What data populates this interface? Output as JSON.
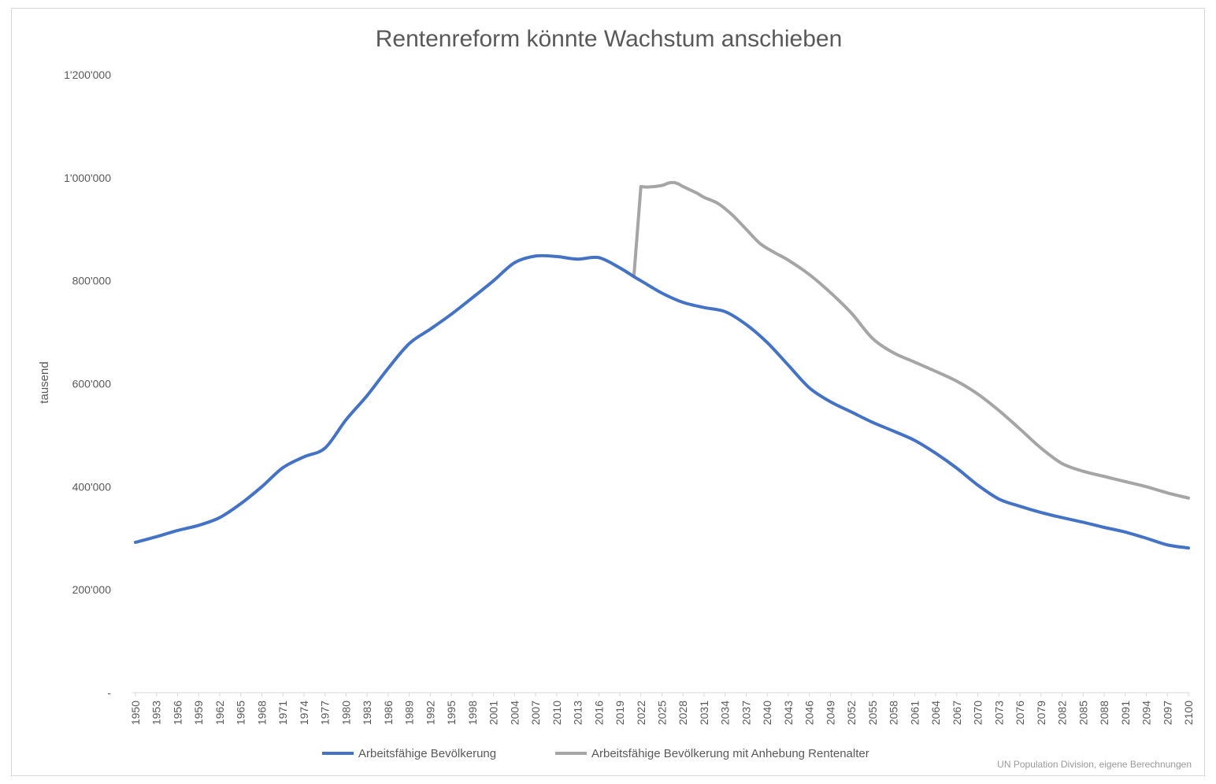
{
  "chart_data": {
    "type": "line",
    "title": "Rentenreform könnte Wachstum anschieben",
    "ylabel": "tausend",
    "xlabel": "",
    "ylim": [
      0,
      1200000
    ],
    "yticks": [
      0,
      200000,
      400000,
      600000,
      800000,
      1000000,
      1200000
    ],
    "ytick_labels": [
      "-",
      "200'000",
      "400'000",
      "600'000",
      "800'000",
      "1'000'000",
      "1'200'000"
    ],
    "xlim": [
      1950,
      2100
    ],
    "xticks": [
      1950,
      1953,
      1956,
      1959,
      1962,
      1965,
      1968,
      1971,
      1974,
      1977,
      1980,
      1983,
      1986,
      1989,
      1992,
      1995,
      1998,
      2001,
      2004,
      2007,
      2010,
      2013,
      2016,
      2019,
      2022,
      2025,
      2028,
      2031,
      2034,
      2037,
      2040,
      2043,
      2046,
      2049,
      2052,
      2055,
      2058,
      2061,
      2064,
      2067,
      2070,
      2073,
      2076,
      2079,
      2082,
      2085,
      2088,
      2091,
      2094,
      2097,
      2100
    ],
    "grid": false,
    "legend_position": "bottom",
    "series": [
      {
        "name": "Arbeitsfähige Bevölkerung",
        "color": "#4472c4",
        "x": [
          1950,
          1953,
          1956,
          1959,
          1962,
          1965,
          1968,
          1971,
          1974,
          1977,
          1980,
          1983,
          1986,
          1989,
          1992,
          1995,
          1998,
          2001,
          2004,
          2007,
          2010,
          2013,
          2016,
          2019,
          2021,
          2022,
          2025,
          2028,
          2031,
          2034,
          2037,
          2040,
          2043,
          2046,
          2049,
          2052,
          2055,
          2058,
          2061,
          2064,
          2067,
          2070,
          2073,
          2076,
          2079,
          2082,
          2085,
          2088,
          2091,
          2094,
          2097,
          2100
        ],
        "y": [
          292000,
          303000,
          315000,
          325000,
          340000,
          367000,
          400000,
          437000,
          458000,
          475000,
          530000,
          577000,
          630000,
          678000,
          706000,
          735000,
          767000,
          800000,
          835000,
          848000,
          847000,
          842000,
          845000,
          825000,
          808000,
          800000,
          776000,
          758000,
          748000,
          740000,
          715000,
          680000,
          636000,
          592000,
          565000,
          545000,
          525000,
          508000,
          490000,
          465000,
          436000,
          403000,
          376000,
          362000,
          350000,
          340000,
          331000,
          321000,
          312000,
          300000,
          287000,
          281000
        ]
      },
      {
        "name": "Arbeitsfähige Bevölkerung mit Anhebung Rentenalter",
        "color": "#a5a5a5",
        "x": [
          2021,
          2022,
          2023,
          2025,
          2026,
          2027,
          2028,
          2030,
          2031,
          2033,
          2035,
          2037,
          2039,
          2041,
          2043,
          2046,
          2049,
          2052,
          2055,
          2058,
          2061,
          2064,
          2067,
          2070,
          2073,
          2076,
          2079,
          2082,
          2085,
          2088,
          2091,
          2094,
          2097,
          2100
        ],
        "y": [
          808000,
          983000,
          982000,
          985000,
          990000,
          990000,
          983000,
          970000,
          962000,
          950000,
          928000,
          900000,
          872000,
          855000,
          840000,
          812000,
          777000,
          737000,
          688000,
          660000,
          642000,
          624000,
          605000,
          580000,
          548000,
          512000,
          475000,
          445000,
          430000,
          420000,
          410000,
          400000,
          388000,
          378000
        ]
      }
    ],
    "source_note": "UN Population Division, eigene Berechnungen"
  }
}
